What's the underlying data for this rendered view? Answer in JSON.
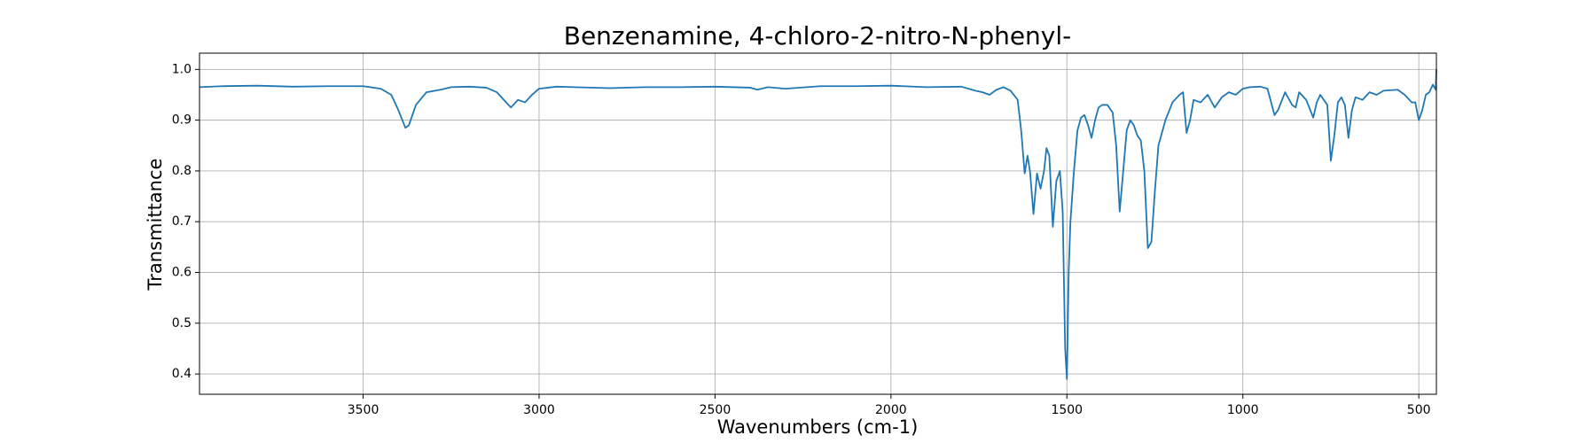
{
  "chart_data": {
    "type": "line",
    "title": "Benzenamine, 4-chloro-2-nitro-N-phenyl-",
    "x_label": "Wavenumbers (cm-1)",
    "y_label": "Transmittance",
    "color": "#1f77b4",
    "grid": true,
    "xlim": [
      3965,
      450
    ],
    "ylim": [
      0.36,
      1.032
    ],
    "xticks": [
      3500,
      3000,
      2500,
      2000,
      1500,
      1000,
      500
    ],
    "yticks": [
      0.4,
      0.5,
      0.6,
      0.7,
      0.8,
      0.9,
      {
        "value": 1,
        "label": "1.0"
      }
    ],
    "x": [
      3965,
      3900,
      3800,
      3700,
      3600,
      3500,
      3450,
      3420,
      3400,
      3380,
      3370,
      3350,
      3320,
      3280,
      3250,
      3200,
      3150,
      3120,
      3100,
      3080,
      3060,
      3040,
      3020,
      3000,
      2950,
      2900,
      2800,
      2700,
      2600,
      2500,
      2400,
      2380,
      2350,
      2300,
      2200,
      2100,
      2000,
      1900,
      1800,
      1760,
      1740,
      1720,
      1700,
      1680,
      1660,
      1640,
      1630,
      1620,
      1612,
      1605,
      1595,
      1585,
      1575,
      1565,
      1558,
      1550,
      1540,
      1530,
      1520,
      1512,
      1505,
      1500,
      1495,
      1490,
      1480,
      1470,
      1460,
      1450,
      1440,
      1430,
      1420,
      1410,
      1400,
      1385,
      1370,
      1360,
      1350,
      1340,
      1330,
      1320,
      1310,
      1300,
      1290,
      1280,
      1270,
      1260,
      1250,
      1240,
      1220,
      1200,
      1180,
      1170,
      1160,
      1150,
      1140,
      1120,
      1100,
      1080,
      1060,
      1040,
      1020,
      1000,
      980,
      950,
      930,
      910,
      900,
      880,
      860,
      850,
      840,
      820,
      800,
      790,
      780,
      760,
      750,
      740,
      730,
      720,
      710,
      700,
      690,
      680,
      660,
      640,
      620,
      600,
      560,
      540,
      520,
      510,
      500,
      490,
      480,
      470,
      460,
      452,
      450
    ],
    "values": [
      0.965,
      0.967,
      0.968,
      0.966,
      0.967,
      0.967,
      0.962,
      0.95,
      0.92,
      0.885,
      0.89,
      0.93,
      0.955,
      0.96,
      0.965,
      0.966,
      0.964,
      0.955,
      0.94,
      0.925,
      0.94,
      0.935,
      0.95,
      0.962,
      0.966,
      0.965,
      0.963,
      0.965,
      0.965,
      0.966,
      0.964,
      0.96,
      0.965,
      0.962,
      0.967,
      0.967,
      0.968,
      0.965,
      0.966,
      0.958,
      0.955,
      0.95,
      0.96,
      0.965,
      0.958,
      0.94,
      0.88,
      0.795,
      0.83,
      0.8,
      0.715,
      0.795,
      0.765,
      0.8,
      0.845,
      0.83,
      0.69,
      0.78,
      0.8,
      0.72,
      0.45,
      0.39,
      0.6,
      0.7,
      0.8,
      0.88,
      0.905,
      0.91,
      0.89,
      0.865,
      0.9,
      0.925,
      0.93,
      0.93,
      0.915,
      0.85,
      0.72,
      0.8,
      0.88,
      0.9,
      0.89,
      0.87,
      0.86,
      0.8,
      0.648,
      0.66,
      0.76,
      0.85,
      0.9,
      0.935,
      0.95,
      0.955,
      0.875,
      0.9,
      0.94,
      0.935,
      0.95,
      0.925,
      0.945,
      0.955,
      0.95,
      0.962,
      0.965,
      0.966,
      0.962,
      0.91,
      0.92,
      0.955,
      0.93,
      0.925,
      0.955,
      0.94,
      0.905,
      0.935,
      0.95,
      0.93,
      0.82,
      0.87,
      0.935,
      0.945,
      0.93,
      0.865,
      0.92,
      0.945,
      0.94,
      0.955,
      0.95,
      0.958,
      0.96,
      0.95,
      0.935,
      0.935,
      0.9,
      0.92,
      0.95,
      0.955,
      0.97,
      0.96,
      1.0
    ]
  }
}
